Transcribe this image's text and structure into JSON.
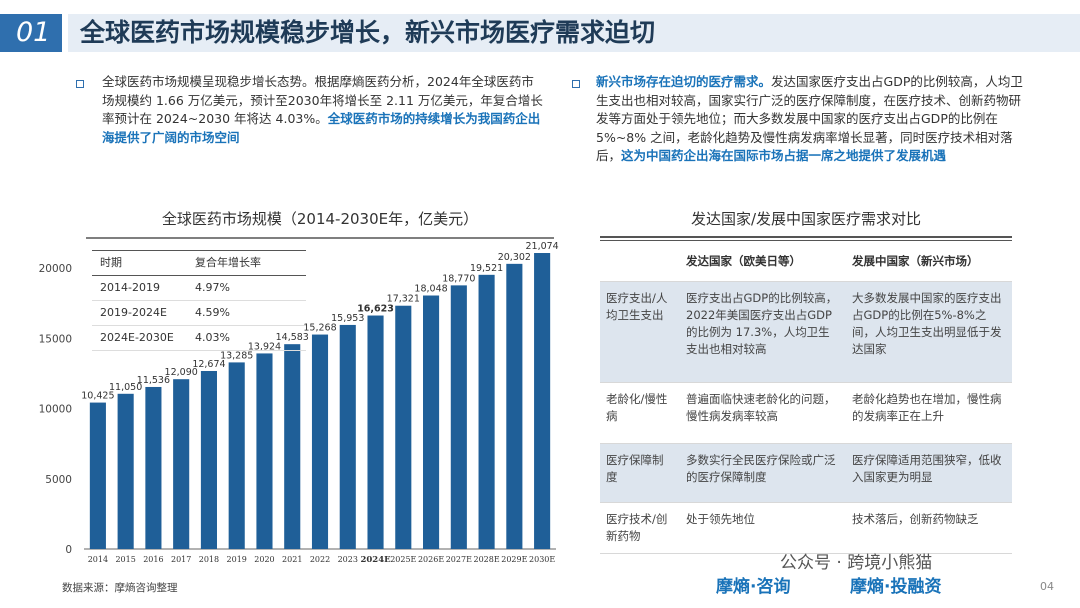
{
  "header": {
    "number": "01",
    "title": "全球医药市场规模稳步增长，新兴市场医疗需求迫切"
  },
  "left_para": {
    "text": "全球医药市场规模呈现稳步增长态势。根据摩熵医药分析，2024年全球医药市场规模约 1.66 万亿美元，预计至2030年将增长至 2.11 万亿美元，年复合增长率预计在 2024~2030 年将达 4.03%。",
    "highlight": "全球医药市场的持续增长为我国药企出海提供了广阔的市场空间"
  },
  "right_para": {
    "highlight1": "新兴市场存在迫切的医疗需求。",
    "text": "发达国家医疗支出占GDP的比例较高，人均卫生支出也相对较高，国家实行广泛的医疗保障制度，在医疗技术、创新药物研发等方面处于领先地位；而大多数发展中国家的医疗支出占GDP的比例在 5%~8% 之间，老龄化趋势及慢性病发病率增长显著，同时医疗技术相对落后，",
    "highlight2": "这为中国药企出海在国际市场占据一席之地提供了发展机遇"
  },
  "chart_data": {
    "type": "bar",
    "title": "全球医药市场规模（2014-2030E年，亿美元）",
    "categories": [
      "2014",
      "2015",
      "2016",
      "2017",
      "2018",
      "2019",
      "2020",
      "2021",
      "2022",
      "2023",
      "2024E",
      "2025E",
      "2026E",
      "2027E",
      "2028E",
      "2029E",
      "2030E"
    ],
    "values": [
      10425,
      11050,
      11536,
      12090,
      12674,
      13285,
      13924,
      14583,
      15268,
      15953,
      16623,
      17321,
      18048,
      18770,
      19521,
      20302,
      21074
    ],
    "value_labels": [
      "10,425",
      "11,050",
      "11,536",
      "12,090",
      "12,674",
      "13,285",
      "13,924",
      "14,583",
      "15,268",
      "15,953",
      "16,623",
      "17,321",
      "18,048",
      "18,770",
      "19,521",
      "20,302",
      "21,074"
    ],
    "highlight_category": "2024E",
    "yticks": [
      "0",
      "5000",
      "10000",
      "15000",
      "20000"
    ],
    "ylim": [
      0,
      22000
    ],
    "bar_color": "#1f5f98"
  },
  "cagr_table": {
    "headers": [
      "时期",
      "复合年增长率"
    ],
    "rows": [
      [
        "2014-2019",
        "4.97%"
      ],
      [
        "2019-2024E",
        "4.59%"
      ],
      [
        "2024E-2030E",
        "4.03%"
      ]
    ]
  },
  "compare_table": {
    "title": "发达国家/发展中国家医疗需求对比",
    "headers": [
      "",
      "发达国家（欧美日等）",
      "发展中国家（新兴市场）"
    ],
    "rows": [
      [
        "医疗支出/人均卫生支出",
        "医疗支出占GDP的比例较高，2022年美国医疗支出占GDP的比例为 17.3%，人均卫生支出也相对较高",
        "大多数发展中国家的医疗支出占GDP的比例在5%-8%之间，人均卫生支出明显低于发达国家"
      ],
      [
        "老龄化/慢性病",
        "普遍面临快速老龄化的问题，慢性病发病率较高",
        "老龄化趋势也在增加，慢性病的发病率正在上升"
      ],
      [
        "医疗保障制度",
        "多数实行全民医疗保险或广泛的医疗保障制度",
        "医疗保障适用范围狭窄，低收入国家更为明显"
      ],
      [
        "医疗技术/创新药物",
        "处于领先地位",
        "技术落后，创新药物缺乏"
      ]
    ]
  },
  "footer": {
    "source": "数据来源：摩熵咨询整理",
    "page": "04",
    "watermark": "公众号 · 跨境小熊猫",
    "logo1": "摩熵·咨询",
    "logo2": "摩熵·投融资",
    "accent": "#1a73b9"
  }
}
